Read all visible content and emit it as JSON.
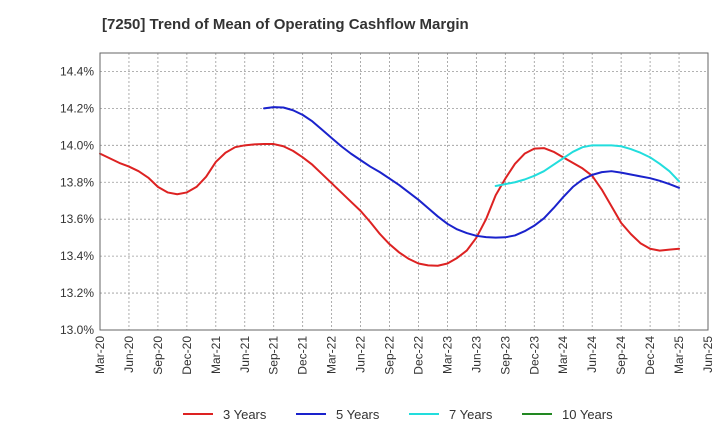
{
  "chart_data": {
    "type": "line",
    "title": "[7250]  Trend of Mean of Operating Cashflow Margin",
    "xlabel": "",
    "ylabel": "",
    "x_ticks": [
      "Mar-20",
      "Jun-20",
      "Sep-20",
      "Dec-20",
      "Mar-21",
      "Jun-21",
      "Sep-21",
      "Dec-21",
      "Mar-22",
      "Jun-22",
      "Sep-22",
      "Dec-22",
      "Mar-23",
      "Jun-23",
      "Sep-23",
      "Dec-23",
      "Mar-24",
      "Jun-24",
      "Sep-24",
      "Dec-24",
      "Mar-25",
      "Jun-25"
    ],
    "y_ticks": [
      "13.0%",
      "13.2%",
      "13.4%",
      "13.6%",
      "13.8%",
      "14.0%",
      "14.2%",
      "14.4%"
    ],
    "ylim": [
      13.0,
      14.5
    ],
    "grid": true,
    "legend_position": "bottom",
    "series": [
      {
        "name": "3 Years",
        "color": "#dd2222",
        "x": [
          "Mar-20",
          "Apr-20",
          "May-20",
          "Jun-20",
          "Jul-20",
          "Aug-20",
          "Sep-20",
          "Oct-20",
          "Nov-20",
          "Dec-20",
          "Jan-21",
          "Feb-21",
          "Mar-21",
          "Apr-21",
          "May-21",
          "Jun-21",
          "Jul-21",
          "Aug-21",
          "Sep-21",
          "Oct-21",
          "Nov-21",
          "Dec-21",
          "Jan-22",
          "Feb-22",
          "Mar-22",
          "Apr-22",
          "May-22",
          "Jun-22",
          "Jul-22",
          "Aug-22",
          "Sep-22",
          "Oct-22",
          "Nov-22",
          "Dec-22",
          "Jan-23",
          "Feb-23",
          "Mar-23",
          "Apr-23",
          "May-23",
          "Jun-23",
          "Jul-23",
          "Aug-23",
          "Sep-23",
          "Oct-23",
          "Nov-23",
          "Dec-23",
          "Jan-24",
          "Feb-24",
          "Mar-24",
          "Apr-24",
          "May-24",
          "Jun-24",
          "Jul-24",
          "Aug-24",
          "Sep-24",
          "Oct-24",
          "Nov-24",
          "Dec-24",
          "Jan-25",
          "Feb-25",
          "Mar-25"
        ],
        "values": [
          13.955,
          13.93,
          13.905,
          13.885,
          13.86,
          13.825,
          13.775,
          13.745,
          13.735,
          13.745,
          13.775,
          13.83,
          13.91,
          13.96,
          13.99,
          14.0,
          14.005,
          14.007,
          14.007,
          13.995,
          13.97,
          13.935,
          13.895,
          13.845,
          13.795,
          13.745,
          13.695,
          13.645,
          13.585,
          13.52,
          13.465,
          13.42,
          13.385,
          13.36,
          13.35,
          13.348,
          13.36,
          13.39,
          13.43,
          13.5,
          13.6,
          13.73,
          13.82,
          13.9,
          13.955,
          13.982,
          13.985,
          13.965,
          13.935,
          13.905,
          13.875,
          13.835,
          13.76,
          13.67,
          13.58,
          13.52,
          13.47,
          13.44,
          13.43,
          13.435,
          13.44
        ]
      },
      {
        "name": "5 Years",
        "color": "#1a22cc",
        "x": [
          "Aug-21",
          "Sep-21",
          "Oct-21",
          "Nov-21",
          "Dec-21",
          "Jan-22",
          "Feb-22",
          "Mar-22",
          "Apr-22",
          "May-22",
          "Jun-22",
          "Jul-22",
          "Aug-22",
          "Sep-22",
          "Oct-22",
          "Nov-22",
          "Dec-22",
          "Jan-23",
          "Feb-23",
          "Mar-23",
          "Apr-23",
          "May-23",
          "Jun-23",
          "Jul-23",
          "Aug-23",
          "Sep-23",
          "Oct-23",
          "Nov-23",
          "Dec-23",
          "Jan-24",
          "Feb-24",
          "Mar-24",
          "Apr-24",
          "May-24",
          "Jun-24",
          "Jul-24",
          "Aug-24",
          "Sep-24",
          "Oct-24",
          "Nov-24",
          "Dec-24",
          "Jan-25",
          "Feb-25",
          "Mar-25"
        ],
        "values": [
          14.2,
          14.207,
          14.205,
          14.19,
          14.165,
          14.13,
          14.085,
          14.04,
          13.995,
          13.955,
          13.92,
          13.885,
          13.855,
          13.82,
          13.785,
          13.745,
          13.705,
          13.66,
          13.615,
          13.575,
          13.545,
          13.525,
          13.51,
          13.503,
          13.5,
          13.502,
          13.512,
          13.535,
          13.565,
          13.605,
          13.66,
          13.72,
          13.775,
          13.815,
          13.84,
          13.855,
          13.86,
          13.852,
          13.842,
          13.832,
          13.822,
          13.808,
          13.79,
          13.77
        ]
      },
      {
        "name": "7 Years",
        "color": "#22dddd",
        "x": [
          "Aug-23",
          "Sep-23",
          "Oct-23",
          "Nov-23",
          "Dec-23",
          "Jan-24",
          "Feb-24",
          "Mar-24",
          "Apr-24",
          "May-24",
          "Jun-24",
          "Jul-24",
          "Aug-24",
          "Sep-24",
          "Oct-24",
          "Nov-24",
          "Dec-24",
          "Jan-25",
          "Feb-25",
          "Mar-25"
        ],
        "values": [
          13.78,
          13.79,
          13.8,
          13.815,
          13.835,
          13.86,
          13.895,
          13.93,
          13.965,
          13.99,
          14.0,
          14.0,
          14.0,
          13.995,
          13.98,
          13.96,
          13.935,
          13.9,
          13.86,
          13.805
        ]
      },
      {
        "name": "10 Years",
        "color": "#228822",
        "x": [],
        "values": []
      }
    ]
  }
}
